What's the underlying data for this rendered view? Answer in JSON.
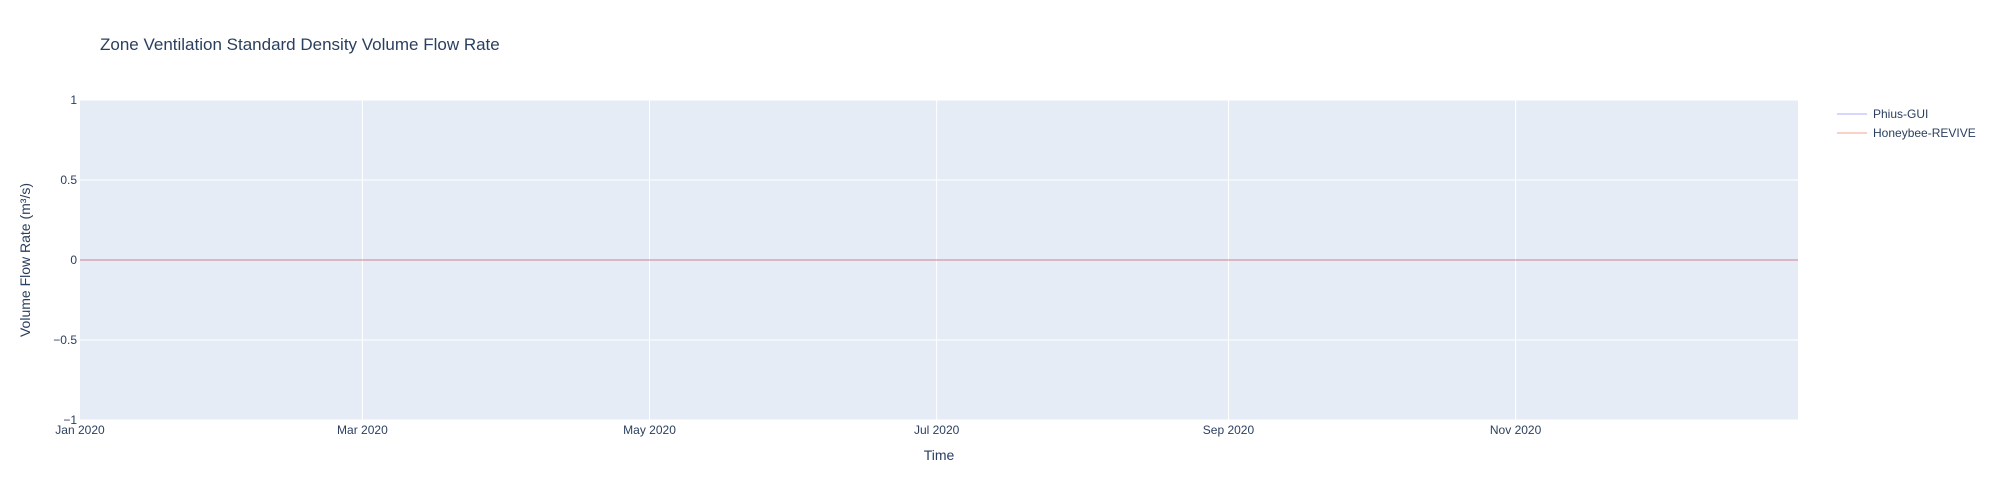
{
  "chart_data": {
    "type": "line",
    "title": "Zone Ventilation Standard Density Volume Flow Rate",
    "xlabel": "Time",
    "ylabel": "Volume Flow Rate (m³/s)",
    "x_range": [
      "2020-01-01",
      "2020-12-31"
    ],
    "ylim": [
      -1,
      1
    ],
    "grid": true,
    "legend_position": "top-right",
    "x_ticks": [
      {
        "date": "2020-01-01",
        "label": "Jan 2020"
      },
      {
        "date": "2020-03-01",
        "label": "Mar 2020"
      },
      {
        "date": "2020-05-01",
        "label": "May 2020"
      },
      {
        "date": "2020-07-01",
        "label": "Jul 2020"
      },
      {
        "date": "2020-09-01",
        "label": "Sep 2020"
      },
      {
        "date": "2020-11-01",
        "label": "Nov 2020"
      }
    ],
    "y_ticks": [
      {
        "value": 1,
        "label": "1"
      },
      {
        "value": 0.5,
        "label": "0.5"
      },
      {
        "value": 0,
        "label": "0"
      },
      {
        "value": -0.5,
        "label": "−0.5"
      },
      {
        "value": -1,
        "label": "−1"
      }
    ],
    "series": [
      {
        "name": "Phius-GUI",
        "color": "#636efa",
        "x": [
          "2020-01-01",
          "2020-12-31"
        ],
        "values": [
          0,
          0
        ]
      },
      {
        "name": "Honeybee-REVIVE",
        "color": "#ef553b",
        "x": [
          "2020-01-01",
          "2020-12-31"
        ],
        "values": [
          0,
          0
        ]
      }
    ]
  },
  "colors": {
    "plot_background": "#e5ecf6",
    "grid": "#ffffff",
    "text": "#2a3f5f"
  }
}
